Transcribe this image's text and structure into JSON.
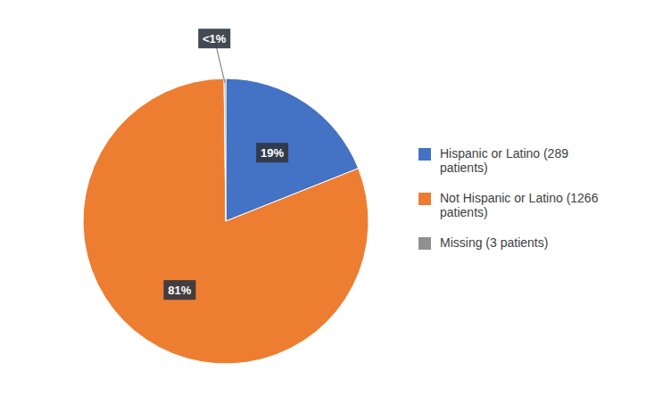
{
  "chart_data": {
    "type": "pie",
    "categories": [
      "Hispanic or Latino (289\npatients)",
      "Not Hispanic or Latino (1266\npatients)",
      "Missing (3 patients)"
    ],
    "values": [
      19,
      81,
      0.19
    ],
    "value_labels": [
      "19%",
      "81%",
      "<1%"
    ],
    "colors": [
      "#4472c4",
      "#ed7d31",
      "#909090"
    ],
    "data_labels": true,
    "legend": "right"
  }
}
